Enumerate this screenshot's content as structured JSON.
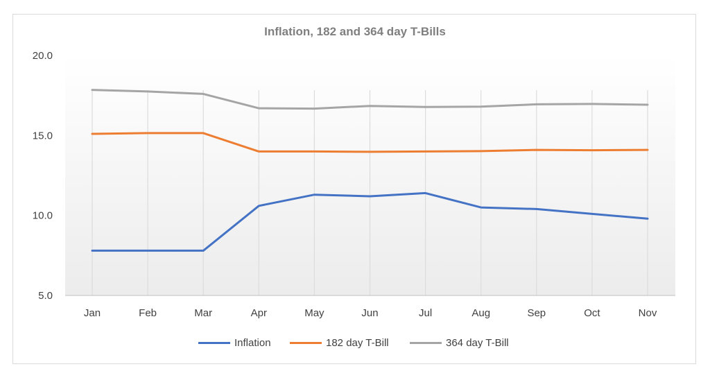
{
  "chart_data": {
    "type": "line",
    "title": "Inflation, 182 and 364 day T-Bills",
    "categories": [
      "Jan",
      "Feb",
      "Mar",
      "Apr",
      "May",
      "Jun",
      "Jul",
      "Aug",
      "Sep",
      "Oct",
      "Nov"
    ],
    "y_ticks": [
      "5.0",
      "10.0",
      "15.0",
      "20.0"
    ],
    "ylim": [
      5,
      20
    ],
    "grid": "vertical",
    "legend_position": "bottom",
    "series": [
      {
        "name": "Inflation",
        "color": "#4472c4",
        "values": [
          7.8,
          7.8,
          7.8,
          10.6,
          11.3,
          11.2,
          11.4,
          10.5,
          10.4,
          10.1,
          9.8
        ]
      },
      {
        "name": "182 day T-Bill",
        "color": "#ed7d31",
        "values": [
          15.1,
          15.15,
          15.15,
          14.0,
          14.0,
          13.98,
          14.0,
          14.02,
          14.1,
          14.08,
          14.1
        ]
      },
      {
        "name": "364 day T-Bill",
        "color": "#a5a5a5",
        "values": [
          17.85,
          17.75,
          17.6,
          16.7,
          16.68,
          16.85,
          16.78,
          16.8,
          16.95,
          16.97,
          16.92
        ]
      }
    ]
  }
}
